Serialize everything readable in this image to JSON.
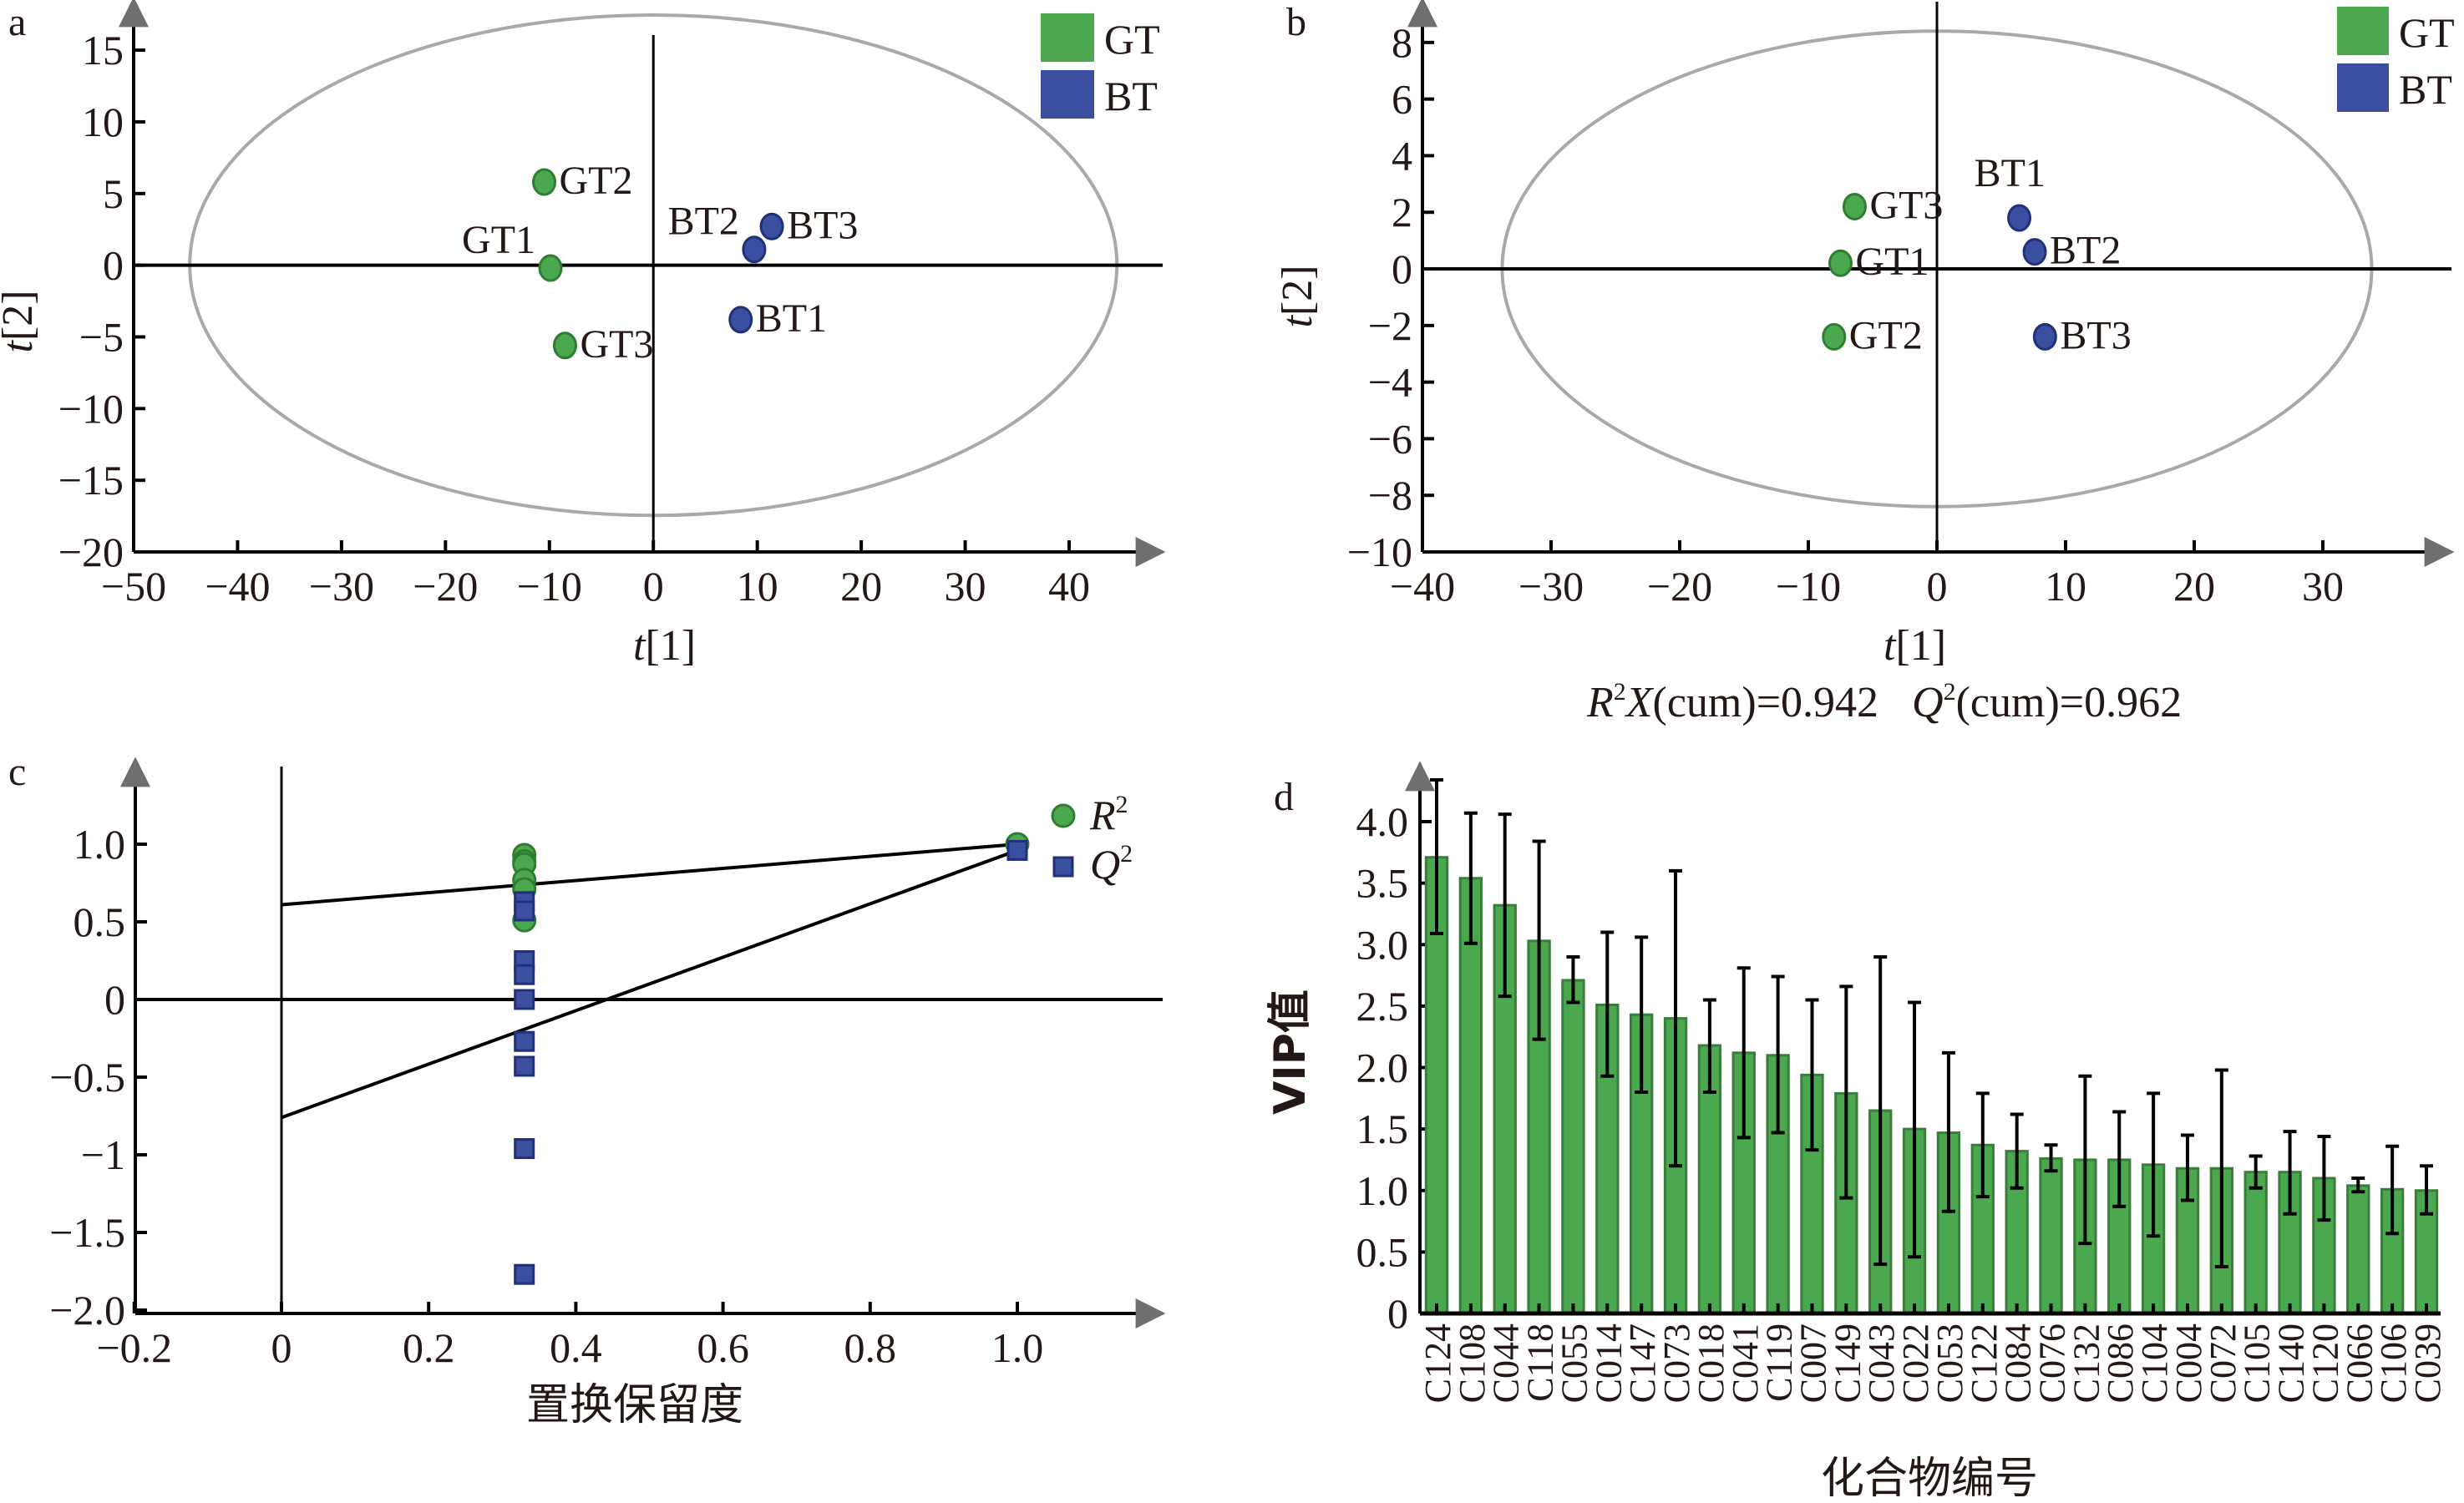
{
  "colors": {
    "gt": "#4ca84e",
    "gt_stroke": "#2f7d33",
    "bt": "#3a4fa0",
    "bt_stroke": "#22307a",
    "ellipse": "#a9a9a9",
    "axis": "#000000",
    "arrow": "#6f6f6f",
    "bar": "#4ca84e",
    "bar_stroke": "#3a7d3c"
  },
  "chart_data": [
    {
      "panel": "a",
      "type": "scatter",
      "title": "",
      "xlabel": "t[1]",
      "ylabel": "t[2]",
      "xlim": [
        -50,
        49
      ],
      "ylim": [
        -20,
        18.5
      ],
      "xticks": [
        -50,
        -40,
        -30,
        -20,
        -10,
        0,
        10,
        20,
        30,
        40
      ],
      "yticks": [
        -20,
        -15,
        -10,
        -5,
        0,
        5,
        10,
        15
      ],
      "ellipse": {
        "rx": 44.6,
        "ry": 17.45
      },
      "legend": [
        {
          "name": "GT",
          "color": "gt"
        },
        {
          "name": "BT",
          "color": "bt"
        }
      ],
      "legend_position": "top-right",
      "series": [
        {
          "name": "GT",
          "points": [
            {
              "label": "GT2",
              "x": -10.5,
              "y": 5.8,
              "label_side": "right"
            },
            {
              "label": "GT1",
              "x": -9.9,
              "y": -0.2,
              "label_side": "upper-left"
            },
            {
              "label": "GT3",
              "x": -8.5,
              "y": -5.6,
              "label_side": "right"
            }
          ]
        },
        {
          "name": "BT",
          "points": [
            {
              "label": "BT2",
              "x": 9.7,
              "y": 1.1,
              "label_side": "upper-left"
            },
            {
              "label": "BT3",
              "x": 11.4,
              "y": 2.7,
              "label_side": "right"
            },
            {
              "label": "BT1",
              "x": 8.4,
              "y": -3.8,
              "label_side": "right"
            }
          ]
        }
      ]
    },
    {
      "panel": "b",
      "type": "scatter",
      "title": "",
      "xlabel": "t[1]",
      "ylabel": "t[2]",
      "xlim": [
        -40,
        40
      ],
      "ylim": [
        -10,
        9.5
      ],
      "xticks": [
        -40,
        -30,
        -20,
        -10,
        0,
        10,
        20,
        30
      ],
      "yticks": [
        -10,
        -8,
        -6,
        -4,
        -2,
        0,
        2,
        4,
        6,
        8
      ],
      "ellipse": {
        "rx": 33.8,
        "ry": 8.4
      },
      "legend": [
        {
          "name": "GT",
          "color": "gt"
        },
        {
          "name": "BT",
          "color": "bt"
        }
      ],
      "legend_position": "top-right",
      "annotation": {
        "r2x_label": "R",
        "r2x_sup": "2",
        "r2x_var": "X",
        "r2x_text": "(cum)=0.942",
        "q2_label": "Q",
        "q2_sup": "2",
        "q2_text": "(cum)=0.962"
      },
      "series": [
        {
          "name": "GT",
          "points": [
            {
              "label": "GT3",
              "x": -6.4,
              "y": 2.2,
              "label_side": "right"
            },
            {
              "label": "GT1",
              "x": -7.5,
              "y": 0.2,
              "label_side": "right"
            },
            {
              "label": "GT2",
              "x": -8.0,
              "y": -2.4,
              "label_side": "right"
            }
          ]
        },
        {
          "name": "BT",
          "points": [
            {
              "label": "BT1",
              "x": 6.4,
              "y": 1.8,
              "label_side": "above"
            },
            {
              "label": "BT2",
              "x": 7.6,
              "y": 0.6,
              "label_side": "right"
            },
            {
              "label": "BT3",
              "x": 8.4,
              "y": -2.4,
              "label_side": "right"
            }
          ]
        }
      ]
    },
    {
      "panel": "c",
      "type": "scatter",
      "title": "",
      "xlabel": "置换保留度",
      "ylabel": "",
      "xlim": [
        -0.2,
        1.2
      ],
      "ylim": [
        -2.0,
        1.45
      ],
      "xticks": [
        -0.2,
        0,
        0.2,
        0.4,
        0.6,
        0.8,
        1.0
      ],
      "xtick_labels": [
        "−0.2",
        "0",
        "0.2",
        "0.4",
        "0.6",
        "0.8",
        "1.0"
      ],
      "yticks": [
        -2.0,
        -1.5,
        -1,
        -0.5,
        0,
        0.5,
        1.0
      ],
      "ytick_labels": [
        "−2.0",
        "−1.5",
        "−1",
        "−0.5",
        "0",
        "0.5",
        "1.0"
      ],
      "legend": [
        {
          "name": "R",
          "sup": "2",
          "marker": "circle",
          "color": "gt"
        },
        {
          "name": "Q",
          "sup": "2",
          "marker": "square",
          "color": "bt"
        }
      ],
      "legend_position": "top-right",
      "series": [
        {
          "name": "R2",
          "marker": "circle",
          "points": [
            {
              "x": 0.33,
              "y": 0.93
            },
            {
              "x": 0.33,
              "y": 0.89
            },
            {
              "x": 0.33,
              "y": 0.87
            },
            {
              "x": 0.33,
              "y": 0.77
            },
            {
              "x": 0.33,
              "y": 0.71
            },
            {
              "x": 0.33,
              "y": 0.51
            },
            {
              "x": 1.0,
              "y": 1.0
            }
          ]
        },
        {
          "name": "Q2",
          "marker": "square",
          "points": [
            {
              "x": 0.33,
              "y": 0.63
            },
            {
              "x": 0.33,
              "y": 0.57
            },
            {
              "x": 0.33,
              "y": 0.25
            },
            {
              "x": 0.33,
              "y": 0.16
            },
            {
              "x": 0.33,
              "y": 0.0
            },
            {
              "x": 0.33,
              "y": -0.27
            },
            {
              "x": 0.33,
              "y": -0.43
            },
            {
              "x": 0.33,
              "y": -0.96
            },
            {
              "x": 0.33,
              "y": -1.77
            },
            {
              "x": 1.0,
              "y": 0.96
            }
          ]
        }
      ],
      "regression_lines": [
        {
          "name": "R2-line",
          "from": [
            0,
            0.61
          ],
          "to": [
            1.0,
            1.0
          ]
        },
        {
          "name": "Q2-line",
          "from": [
            0,
            -0.76
          ],
          "to": [
            1.0,
            0.96
          ]
        }
      ]
    },
    {
      "panel": "d",
      "type": "bar",
      "title": "",
      "xlabel": "化合物编号",
      "ylabel": "VIP值",
      "ylim": [
        0,
        4.35
      ],
      "yticks": [
        0,
        0.5,
        1.0,
        1.5,
        2.0,
        2.5,
        3.0,
        3.5,
        4.0
      ],
      "ytick_labels": [
        "0",
        "0.5",
        "1.0",
        "1.5",
        "2.0",
        "2.5",
        "3.0",
        "3.5",
        "4.0"
      ],
      "categories": [
        "C124",
        "C108",
        "C044",
        "C118",
        "C055",
        "C014",
        "C147",
        "C073",
        "C018",
        "C041",
        "C119",
        "C007",
        "C149",
        "C043",
        "C022",
        "C053",
        "C122",
        "C084",
        "C076",
        "C132",
        "C086",
        "C104",
        "C004",
        "C072",
        "C105",
        "C140",
        "C120",
        "C066",
        "C106",
        "C039"
      ],
      "values": [
        3.71,
        3.54,
        3.32,
        3.03,
        2.71,
        2.51,
        2.43,
        2.4,
        2.18,
        2.12,
        2.1,
        1.94,
        1.79,
        1.65,
        1.5,
        1.47,
        1.37,
        1.32,
        1.26,
        1.25,
        1.25,
        1.21,
        1.18,
        1.18,
        1.15,
        1.15,
        1.1,
        1.04,
        1.01,
        1.0
      ],
      "error_upper": [
        4.34,
        4.07,
        4.06,
        3.84,
        2.9,
        3.1,
        3.06,
        3.6,
        2.55,
        2.81,
        2.74,
        2.55,
        2.66,
        2.9,
        2.53,
        2.12,
        1.79,
        1.62,
        1.37,
        1.93,
        1.64,
        1.79,
        1.45,
        1.98,
        1.28,
        1.48,
        1.44,
        1.1,
        1.36,
        1.2
      ],
      "error_lower": [
        3.09,
        3.01,
        2.58,
        2.23,
        2.53,
        1.93,
        1.8,
        1.2,
        1.8,
        1.43,
        1.47,
        1.33,
        0.94,
        0.4,
        0.46,
        0.83,
        0.95,
        1.02,
        1.16,
        0.57,
        0.87,
        0.63,
        0.92,
        0.38,
        1.02,
        0.81,
        0.76,
        0.99,
        0.65,
        0.81
      ]
    }
  ],
  "panel_letters": {
    "a": "a",
    "b": "b",
    "c": "c",
    "d": "d"
  },
  "axis_labels": {
    "a_x_var": "t",
    "a_x_idx": "[1]",
    "a_y_var": "t",
    "a_y_idx": "[2]",
    "b_x_var": "t",
    "b_x_idx": "[1]",
    "b_y_var": "t",
    "b_y_idx": "[2]"
  }
}
